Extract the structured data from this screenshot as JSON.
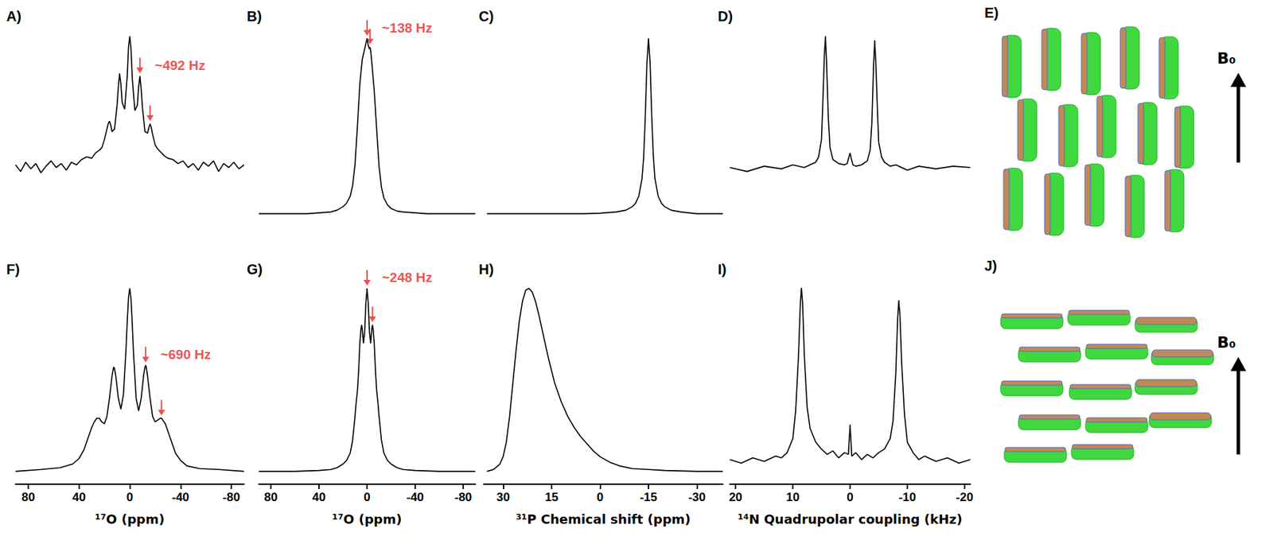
{
  "chart_data": [
    {
      "type": "line",
      "title": "A)",
      "color": "#000000",
      "tick_labels": false,
      "xlim": [
        90,
        -90
      ],
      "ylim": [
        -0.55,
        1.05
      ],
      "x": [
        90,
        86,
        82,
        78,
        74,
        70,
        66,
        62,
        58,
        54,
        50,
        46,
        42,
        38,
        34,
        30,
        27,
        24,
        22,
        20,
        18,
        17,
        16,
        15,
        14,
        12,
        10,
        9,
        8,
        7,
        6,
        4,
        2,
        1,
        0,
        -1,
        -2,
        -4,
        -6,
        -7,
        -8,
        -9,
        -10,
        -12,
        -14,
        -15,
        -16,
        -17,
        -18,
        -20,
        -22,
        -24,
        -27,
        -30,
        -34,
        -38,
        -42,
        -46,
        -50,
        -54,
        -58,
        -62,
        -66,
        -70,
        -74,
        -78,
        -82,
        -86,
        -90
      ],
      "values": [
        0.03,
        -0.02,
        0.05,
        0.0,
        0.04,
        -0.03,
        0.02,
        0.06,
        0.01,
        0.04,
        -0.01,
        0.05,
        0.03,
        0.07,
        0.09,
        0.08,
        0.12,
        0.14,
        0.16,
        0.22,
        0.3,
        0.34,
        0.36,
        0.33,
        0.28,
        0.3,
        0.48,
        0.62,
        0.72,
        0.64,
        0.5,
        0.45,
        0.7,
        0.92,
        1.0,
        0.9,
        0.68,
        0.44,
        0.48,
        0.62,
        0.7,
        0.6,
        0.46,
        0.28,
        0.27,
        0.31,
        0.34,
        0.31,
        0.26,
        0.18,
        0.15,
        0.13,
        0.1,
        0.08,
        0.07,
        0.04,
        0.06,
        0.01,
        0.04,
        -0.01,
        0.05,
        0.02,
        0.06,
        -0.02,
        0.04,
        0.01,
        0.05,
        0.0,
        0.03
      ],
      "annotations": [
        {
          "text": "~492 Hz",
          "arrows_x": [
            -8,
            -16
          ],
          "color": "#e8251f"
        }
      ]
    },
    {
      "type": "line",
      "title": "B)",
      "color": "#000000",
      "tick_labels": false,
      "xlim": [
        90,
        -90
      ],
      "ylim": [
        -0.16,
        1.05
      ],
      "x": [
        90,
        70,
        50,
        40,
        30,
        25,
        20,
        17,
        14,
        12,
        10,
        8,
        6,
        4,
        2,
        1,
        0,
        -1,
        -2,
        -2.5,
        -3,
        -4,
        -6,
        -8,
        -10,
        -12,
        -14,
        -17,
        -20,
        -25,
        -30,
        -40,
        -50,
        -70,
        -90
      ],
      "values": [
        0,
        0,
        0,
        0.005,
        0.01,
        0.02,
        0.04,
        0.06,
        0.1,
        0.16,
        0.28,
        0.5,
        0.74,
        0.88,
        0.94,
        0.97,
        1.0,
        0.96,
        0.94,
        0.95,
        0.93,
        0.86,
        0.7,
        0.48,
        0.27,
        0.15,
        0.09,
        0.05,
        0.03,
        0.015,
        0.01,
        0.005,
        0,
        0,
        0
      ],
      "annotations": [
        {
          "text": "~138 Hz",
          "arrows_x": [
            0,
            -2.5
          ],
          "color": "#e8251f"
        }
      ]
    },
    {
      "type": "line",
      "title": "C)",
      "color": "#000000",
      "tick_labels": false,
      "xlim": [
        36,
        -38
      ],
      "ylim": [
        -0.16,
        1.05
      ],
      "x": [
        35,
        25,
        15,
        5,
        0,
        -5,
        -8,
        -10,
        -11,
        -12,
        -13,
        -13.5,
        -14,
        -14.5,
        -15,
        -15.5,
        -16,
        -16.5,
        -17,
        -18,
        -19,
        -20,
        -22,
        -25,
        -30,
        -38
      ],
      "values": [
        0,
        0,
        0,
        0,
        0.003,
        0.01,
        0.02,
        0.04,
        0.06,
        0.1,
        0.2,
        0.32,
        0.55,
        0.85,
        1.0,
        0.86,
        0.56,
        0.33,
        0.2,
        0.1,
        0.06,
        0.04,
        0.02,
        0.01,
        0,
        0
      ]
    },
    {
      "type": "line",
      "title": "D)",
      "color": "#000000",
      "tick_labels": false,
      "xlim": [
        21,
        -21
      ],
      "ylim": [
        -0.55,
        1.05
      ],
      "x": [
        21,
        18,
        15,
        12,
        10,
        8,
        7,
        6,
        5.5,
        5,
        4.8,
        4.5,
        4.3,
        4.1,
        3.8,
        3.5,
        3,
        2,
        1,
        0.5,
        0.2,
        0,
        -0.2,
        -0.5,
        -1,
        -2,
        -3,
        -3.5,
        -3.8,
        -4.1,
        -4.3,
        -4.5,
        -4.8,
        -5,
        -5.5,
        -6,
        -7,
        -8,
        -10,
        -12,
        -15,
        -18,
        -21
      ],
      "values": [
        0.01,
        -0.02,
        0.02,
        0.0,
        0.03,
        0.01,
        0.03,
        0.05,
        0.09,
        0.22,
        0.45,
        0.85,
        1.0,
        0.8,
        0.38,
        0.16,
        0.07,
        0.04,
        0.03,
        0.04,
        0.09,
        0.12,
        0.08,
        0.03,
        0.02,
        0.03,
        0.06,
        0.14,
        0.34,
        0.78,
        0.97,
        0.8,
        0.42,
        0.2,
        0.09,
        0.05,
        0.02,
        0.03,
        -0.01,
        0.02,
        0.0,
        0.02,
        0.01
      ]
    },
    {
      "type": "line",
      "title": "F)",
      "color": "#000000",
      "tick_labels": "x",
      "x_label": "¹⁷O (ppm)",
      "xlim": [
        90,
        -90
      ],
      "xticks": [
        80,
        40,
        0,
        -40,
        -80
      ],
      "ylim": [
        -0.07,
        1.05
      ],
      "x": [
        90,
        70,
        55,
        45,
        40,
        36,
        33,
        30,
        28,
        26,
        25,
        24,
        22,
        20,
        18,
        16,
        14,
        13,
        12.5,
        12,
        11,
        9,
        7,
        5,
        3,
        2,
        1,
        0,
        -1,
        -2,
        -3,
        -5,
        -7,
        -9,
        -11,
        -12,
        -12.5,
        -13,
        -14,
        -16,
        -18,
        -20,
        -22,
        -24,
        -25,
        -26,
        -28,
        -30,
        -33,
        -36,
        -40,
        -45,
        -55,
        -70,
        -90
      ],
      "values": [
        0.0,
        0.01,
        0.02,
        0.04,
        0.07,
        0.12,
        0.18,
        0.24,
        0.27,
        0.29,
        0.29,
        0.29,
        0.27,
        0.26,
        0.3,
        0.4,
        0.52,
        0.56,
        0.57,
        0.56,
        0.52,
        0.4,
        0.34,
        0.42,
        0.66,
        0.82,
        0.95,
        1.0,
        0.94,
        0.8,
        0.64,
        0.4,
        0.33,
        0.4,
        0.53,
        0.57,
        0.58,
        0.57,
        0.52,
        0.4,
        0.3,
        0.27,
        0.28,
        0.29,
        0.29,
        0.28,
        0.26,
        0.22,
        0.16,
        0.1,
        0.06,
        0.03,
        0.015,
        0.01,
        0.0
      ],
      "annotations": [
        {
          "text": "~690 Hz",
          "arrows_x": [
            -12.5,
            -25
          ],
          "color": "#e8251f"
        }
      ]
    },
    {
      "type": "line",
      "title": "G)",
      "color": "#000000",
      "tick_labels": "x",
      "x_label": "¹⁷O (ppm)",
      "xlim": [
        90,
        -90
      ],
      "xticks": [
        80,
        40,
        0,
        -40,
        -80
      ],
      "ylim": [
        -0.07,
        1.05
      ],
      "x": [
        90,
        60,
        40,
        30,
        25,
        20,
        17,
        14,
        12,
        10,
        9,
        8,
        7,
        6,
        5,
        4.5,
        4,
        3,
        2,
        1,
        0,
        -1,
        -2,
        -3,
        -4,
        -4.5,
        -5,
        -6,
        -7,
        -8,
        -9,
        -10,
        -12,
        -14,
        -17,
        -20,
        -25,
        -30,
        -40,
        -60,
        -90
      ],
      "values": [
        0,
        0,
        0.005,
        0.01,
        0.02,
        0.04,
        0.06,
        0.1,
        0.17,
        0.3,
        0.38,
        0.44,
        0.55,
        0.7,
        0.78,
        0.8,
        0.78,
        0.7,
        0.76,
        0.92,
        1.0,
        0.92,
        0.76,
        0.7,
        0.78,
        0.8,
        0.78,
        0.7,
        0.55,
        0.44,
        0.38,
        0.3,
        0.17,
        0.1,
        0.06,
        0.04,
        0.02,
        0.01,
        0.005,
        0,
        0
      ],
      "annotations": [
        {
          "text": "~248 Hz",
          "arrows_x": [
            0,
            -4.5
          ],
          "color": "#e8251f"
        }
      ]
    },
    {
      "type": "line",
      "title": "H)",
      "color": "#000000",
      "tick_labels": "x",
      "x_label": "³¹P Chemical shift (ppm)",
      "xlim": [
        36,
        -38
      ],
      "xticks": [
        30,
        15,
        0,
        -15,
        -30
      ],
      "ylim": [
        -0.07,
        1.05
      ],
      "x": [
        35,
        33,
        31,
        30,
        29,
        28,
        27,
        26,
        25,
        24,
        23,
        22,
        21,
        20,
        19,
        18,
        17,
        16,
        15,
        14,
        12,
        10,
        8,
        6,
        4,
        2,
        0,
        -3,
        -6,
        -10,
        -15,
        -20,
        -30,
        -38
      ],
      "values": [
        0,
        0.01,
        0.04,
        0.08,
        0.16,
        0.3,
        0.48,
        0.66,
        0.82,
        0.93,
        0.99,
        1.0,
        0.98,
        0.93,
        0.86,
        0.78,
        0.7,
        0.62,
        0.55,
        0.48,
        0.38,
        0.3,
        0.24,
        0.19,
        0.15,
        0.11,
        0.08,
        0.05,
        0.03,
        0.015,
        0.01,
        0.005,
        0,
        0
      ]
    },
    {
      "type": "line",
      "title": "I)",
      "color": "#000000",
      "tick_labels": "x",
      "x_label": "¹⁴N Quadrupolar coupling (kHz)",
      "xlim": [
        21,
        -21
      ],
      "xticks": [
        20,
        10,
        0,
        -10,
        -20
      ],
      "ylim": [
        -0.12,
        1.05
      ],
      "x": [
        21,
        19,
        17,
        15,
        13,
        12,
        11,
        10,
        9.5,
        9,
        8.7,
        8.5,
        8.3,
        8,
        7.5,
        7,
        6,
        5,
        4,
        3,
        2,
        1,
        0.3,
        0,
        -0.3,
        -1,
        -2,
        -3,
        -4,
        -5,
        -6,
        -7,
        -7.5,
        -8,
        -8.3,
        -8.5,
        -8.7,
        -9,
        -9.5,
        -10,
        -11,
        -12,
        -13,
        -15,
        -17,
        -19,
        -21
      ],
      "values": [
        0.02,
        0.0,
        0.03,
        0.01,
        0.04,
        0.03,
        0.06,
        0.14,
        0.3,
        0.62,
        0.9,
        1.0,
        0.92,
        0.62,
        0.32,
        0.2,
        0.12,
        0.08,
        0.05,
        0.07,
        0.03,
        0.06,
        0.05,
        0.22,
        0.04,
        0.06,
        0.02,
        0.05,
        0.03,
        0.06,
        0.08,
        0.14,
        0.24,
        0.52,
        0.82,
        0.93,
        0.85,
        0.58,
        0.28,
        0.12,
        0.06,
        0.02,
        0.04,
        0.01,
        0.03,
        0.0,
        0.02
      ]
    }
  ],
  "diagrams": [
    {
      "title": "E)",
      "field_label": "B₀",
      "orientation": "vertical"
    },
    {
      "title": "J)",
      "field_label": "B₀",
      "orientation": "horizontal"
    }
  ]
}
